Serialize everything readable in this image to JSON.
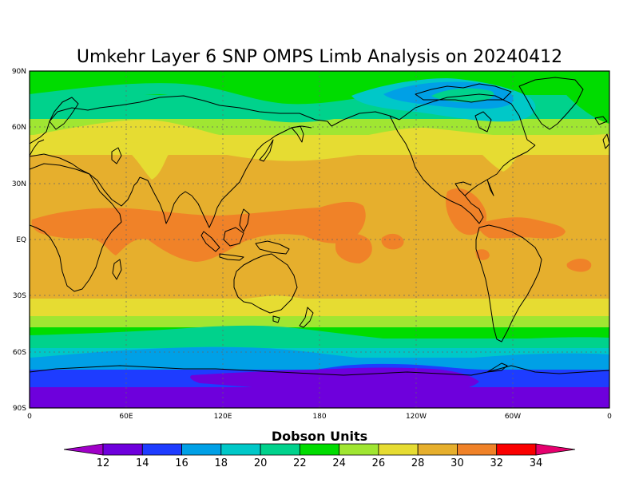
{
  "title": "Umkehr Layer 6 SNP OMPS Limb Analysis on 20240412",
  "axes": {
    "lat_ticks": [
      "90N",
      "60N",
      "30N",
      "EQ",
      "30S",
      "60S",
      "90S"
    ],
    "lon_ticks": [
      "0",
      "60E",
      "120E",
      "180",
      "120W",
      "60W",
      "0"
    ],
    "grid": true
  },
  "colorbar": {
    "label": "Dobson Units",
    "ticks": [
      "12",
      "14",
      "16",
      "18",
      "20",
      "22",
      "24",
      "26",
      "28",
      "30",
      "32",
      "34"
    ],
    "colors": [
      "#a000c8",
      "#6e00dc",
      "#1e3cff",
      "#00a0e6",
      "#00c8c8",
      "#00d28c",
      "#00dc00",
      "#a0e632",
      "#e6dc32",
      "#e6af2d",
      "#f08228",
      "#fa0000",
      "#e6006e"
    ]
  },
  "chart_data": {
    "type": "heatmap",
    "title": "Umkehr Layer 6 SNP OMPS Limb Analysis on 20240412",
    "colorbar_label": "Dobson Units",
    "units": "Dobson Units",
    "lat_range": [
      -90,
      90
    ],
    "lon_range": [
      0,
      360
    ],
    "levels": [
      12,
      14,
      16,
      18,
      20,
      22,
      24,
      26,
      28,
      30,
      32,
      34
    ],
    "zonal_profile": [
      {
        "lat": 85,
        "value": 23
      },
      {
        "lat": 75,
        "value": 22.5
      },
      {
        "lat": 65,
        "value": 24
      },
      {
        "lat": 55,
        "value": 26
      },
      {
        "lat": 45,
        "value": 27.5
      },
      {
        "lat": 35,
        "value": 28.5
      },
      {
        "lat": 20,
        "value": 29
      },
      {
        "lat": 5,
        "value": 30.5
      },
      {
        "lat": -10,
        "value": 29.5
      },
      {
        "lat": -25,
        "value": 29
      },
      {
        "lat": -35,
        "value": 27.5
      },
      {
        "lat": -42,
        "value": 26.5
      },
      {
        "lat": -48,
        "value": 24.5
      },
      {
        "lat": -55,
        "value": 22.5
      },
      {
        "lat": -62,
        "value": 20
      },
      {
        "lat": -70,
        "value": 17
      },
      {
        "lat": -78,
        "value": 15
      },
      {
        "lat": -86,
        "value": 13
      }
    ]
  }
}
